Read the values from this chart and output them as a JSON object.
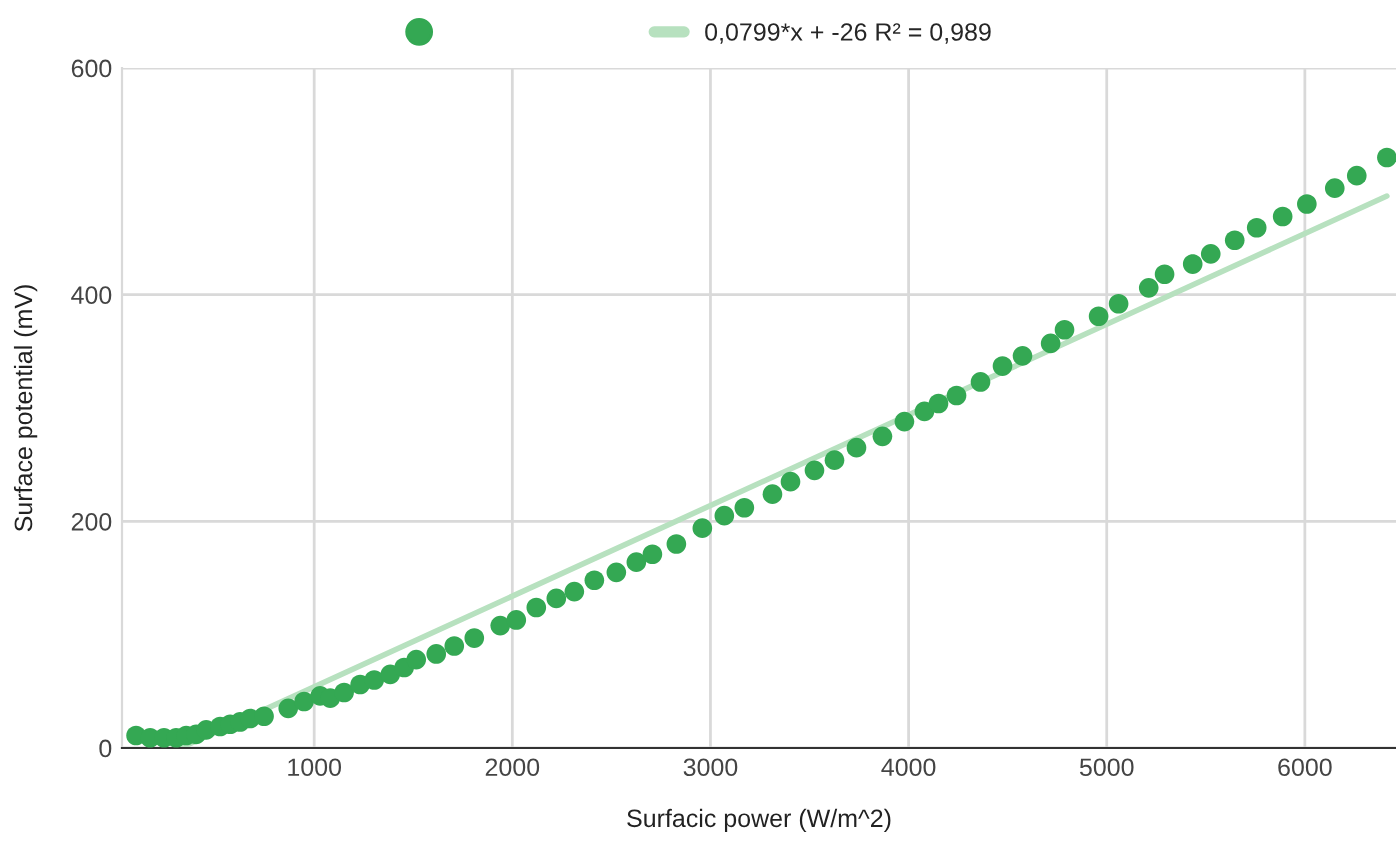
{
  "chart_data": {
    "type": "scatter",
    "xlabel": "Surfacic power (W/m^2)",
    "ylabel": "Surface potential (mV)",
    "xlim": [
      30,
      6460
    ],
    "ylim": [
      0,
      600
    ],
    "xticks": [
      1000,
      2000,
      3000,
      4000,
      5000,
      6000
    ],
    "yticks": [
      0,
      200,
      400,
      600
    ],
    "grid": true,
    "legend": "top",
    "marker": "circle",
    "series": [
      {
        "color": "#34a853",
        "x": [
          101,
          172,
          242,
          303,
          354,
          404,
          455,
          525,
          576,
          626,
          677,
          747,
          869,
          949,
          1030,
          1081,
          1151,
          1232,
          1303,
          1384,
          1454,
          1515,
          1616,
          1707,
          1808,
          1939,
          2020,
          2121,
          2222,
          2313,
          2414,
          2525,
          2626,
          2707,
          2828,
          2959,
          3070,
          3171,
          3313,
          3404,
          3525,
          3626,
          3737,
          3868,
          3979,
          4080,
          4151,
          4242,
          4363,
          4474,
          4575,
          4717,
          4787,
          4959,
          5060,
          5212,
          5292,
          5434,
          5525,
          5646,
          5757,
          5888,
          6010,
          6151,
          6262,
          6414
        ],
        "values": [
          11,
          9,
          9,
          9,
          11,
          12,
          16,
          19,
          21,
          23,
          26,
          28,
          35,
          41,
          46,
          44,
          49,
          56,
          60,
          65,
          71,
          78,
          83,
          90,
          97,
          108,
          113,
          124,
          132,
          138,
          148,
          155,
          164,
          171,
          180,
          194,
          205,
          212,
          224,
          235,
          245,
          254,
          265,
          275,
          288,
          297,
          304,
          311,
          323,
          337,
          346,
          357,
          369,
          381,
          392,
          406,
          418,
          427,
          436,
          448,
          459,
          469,
          480,
          494,
          505,
          521
        ]
      },
      {
        "type": "line",
        "name": "0,0799*x + -26 R² = 0,989",
        "color": "#b7e1bf",
        "line_style": "solid",
        "marker": "none",
        "x": [
          325,
          6414
        ],
        "values": [
          0,
          487
        ]
      }
    ]
  }
}
